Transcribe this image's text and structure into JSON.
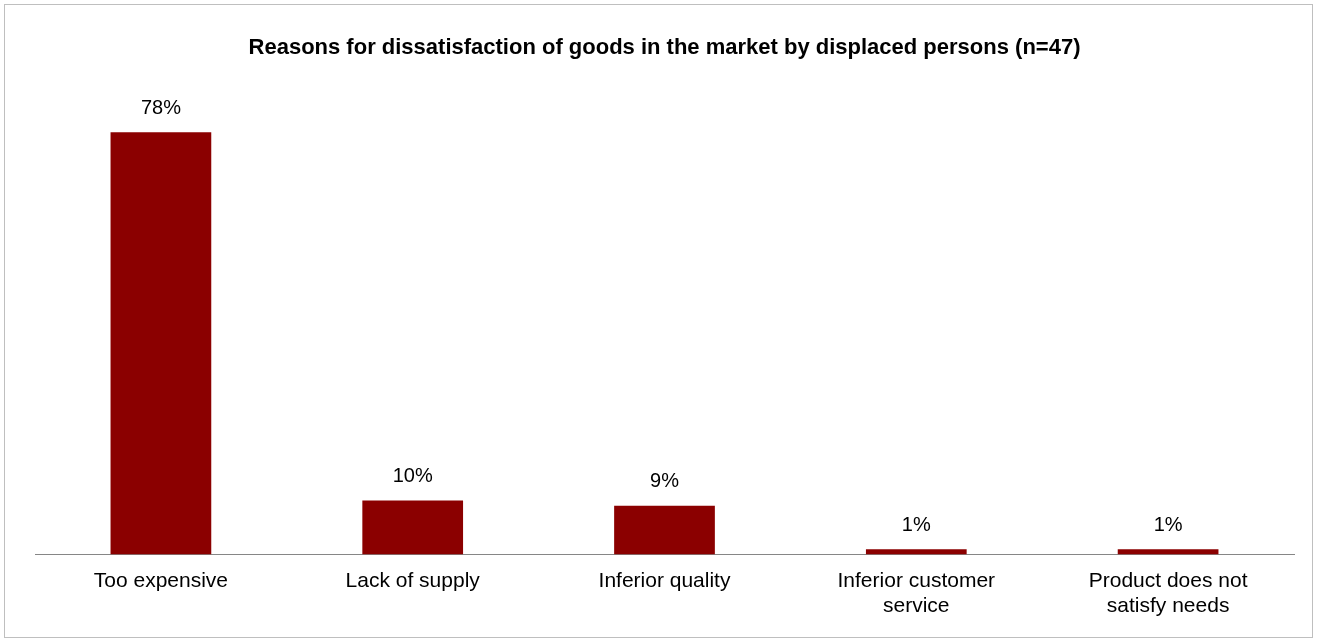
{
  "chart_data": {
    "type": "bar",
    "title": "Reasons for dissatisfaction of goods in the market by displaced persons (n=47)",
    "categories": [
      "Too expensive",
      "Lack of supply",
      "Inferior quality",
      "Inferior customer service",
      "Product does not satisfy needs"
    ],
    "values": [
      78,
      10,
      9,
      1,
      1
    ],
    "value_labels": [
      "78%",
      "10%",
      "9%",
      "1%",
      "1%"
    ],
    "color": "#8b0000",
    "grid": false,
    "legend": false
  }
}
